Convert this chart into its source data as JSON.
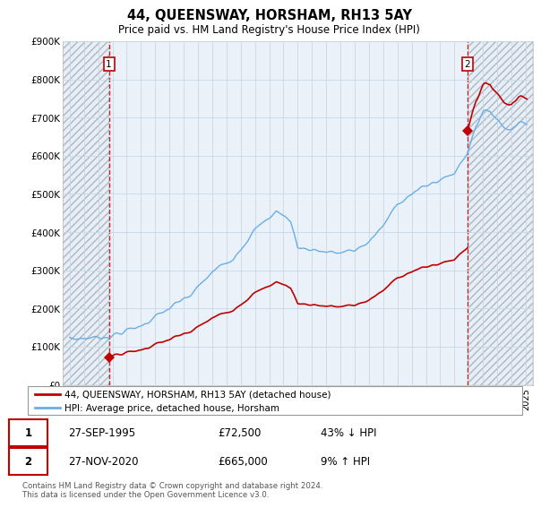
{
  "title": "44, QUEENSWAY, HORSHAM, RH13 5AY",
  "subtitle": "Price paid vs. HM Land Registry's House Price Index (HPI)",
  "legend_line1": "44, QUEENSWAY, HORSHAM, RH13 5AY (detached house)",
  "legend_line2": "HPI: Average price, detached house, Horsham",
  "footer": "Contains HM Land Registry data © Crown copyright and database right 2024.\nThis data is licensed under the Open Government Licence v3.0.",
  "transaction_labels": [
    {
      "id": "1",
      "date": "27-SEP-1995",
      "price": "£72,500",
      "hpi": "43% ↓ HPI"
    },
    {
      "id": "2",
      "date": "27-NOV-2020",
      "price": "£665,000",
      "hpi": "9% ↑ HPI"
    }
  ],
  "t1": 1995.75,
  "t2": 2020.917,
  "price1": 72500,
  "price2": 665000,
  "hpi_color": "#6aaee8",
  "price_color": "#c00000",
  "ylim": [
    0,
    900000
  ],
  "xmin": 1992.5,
  "xmax": 2025.5,
  "grid_color": "#c8d8e8",
  "background_color": "#ffffff",
  "hatch_bg": "#e8eef4"
}
